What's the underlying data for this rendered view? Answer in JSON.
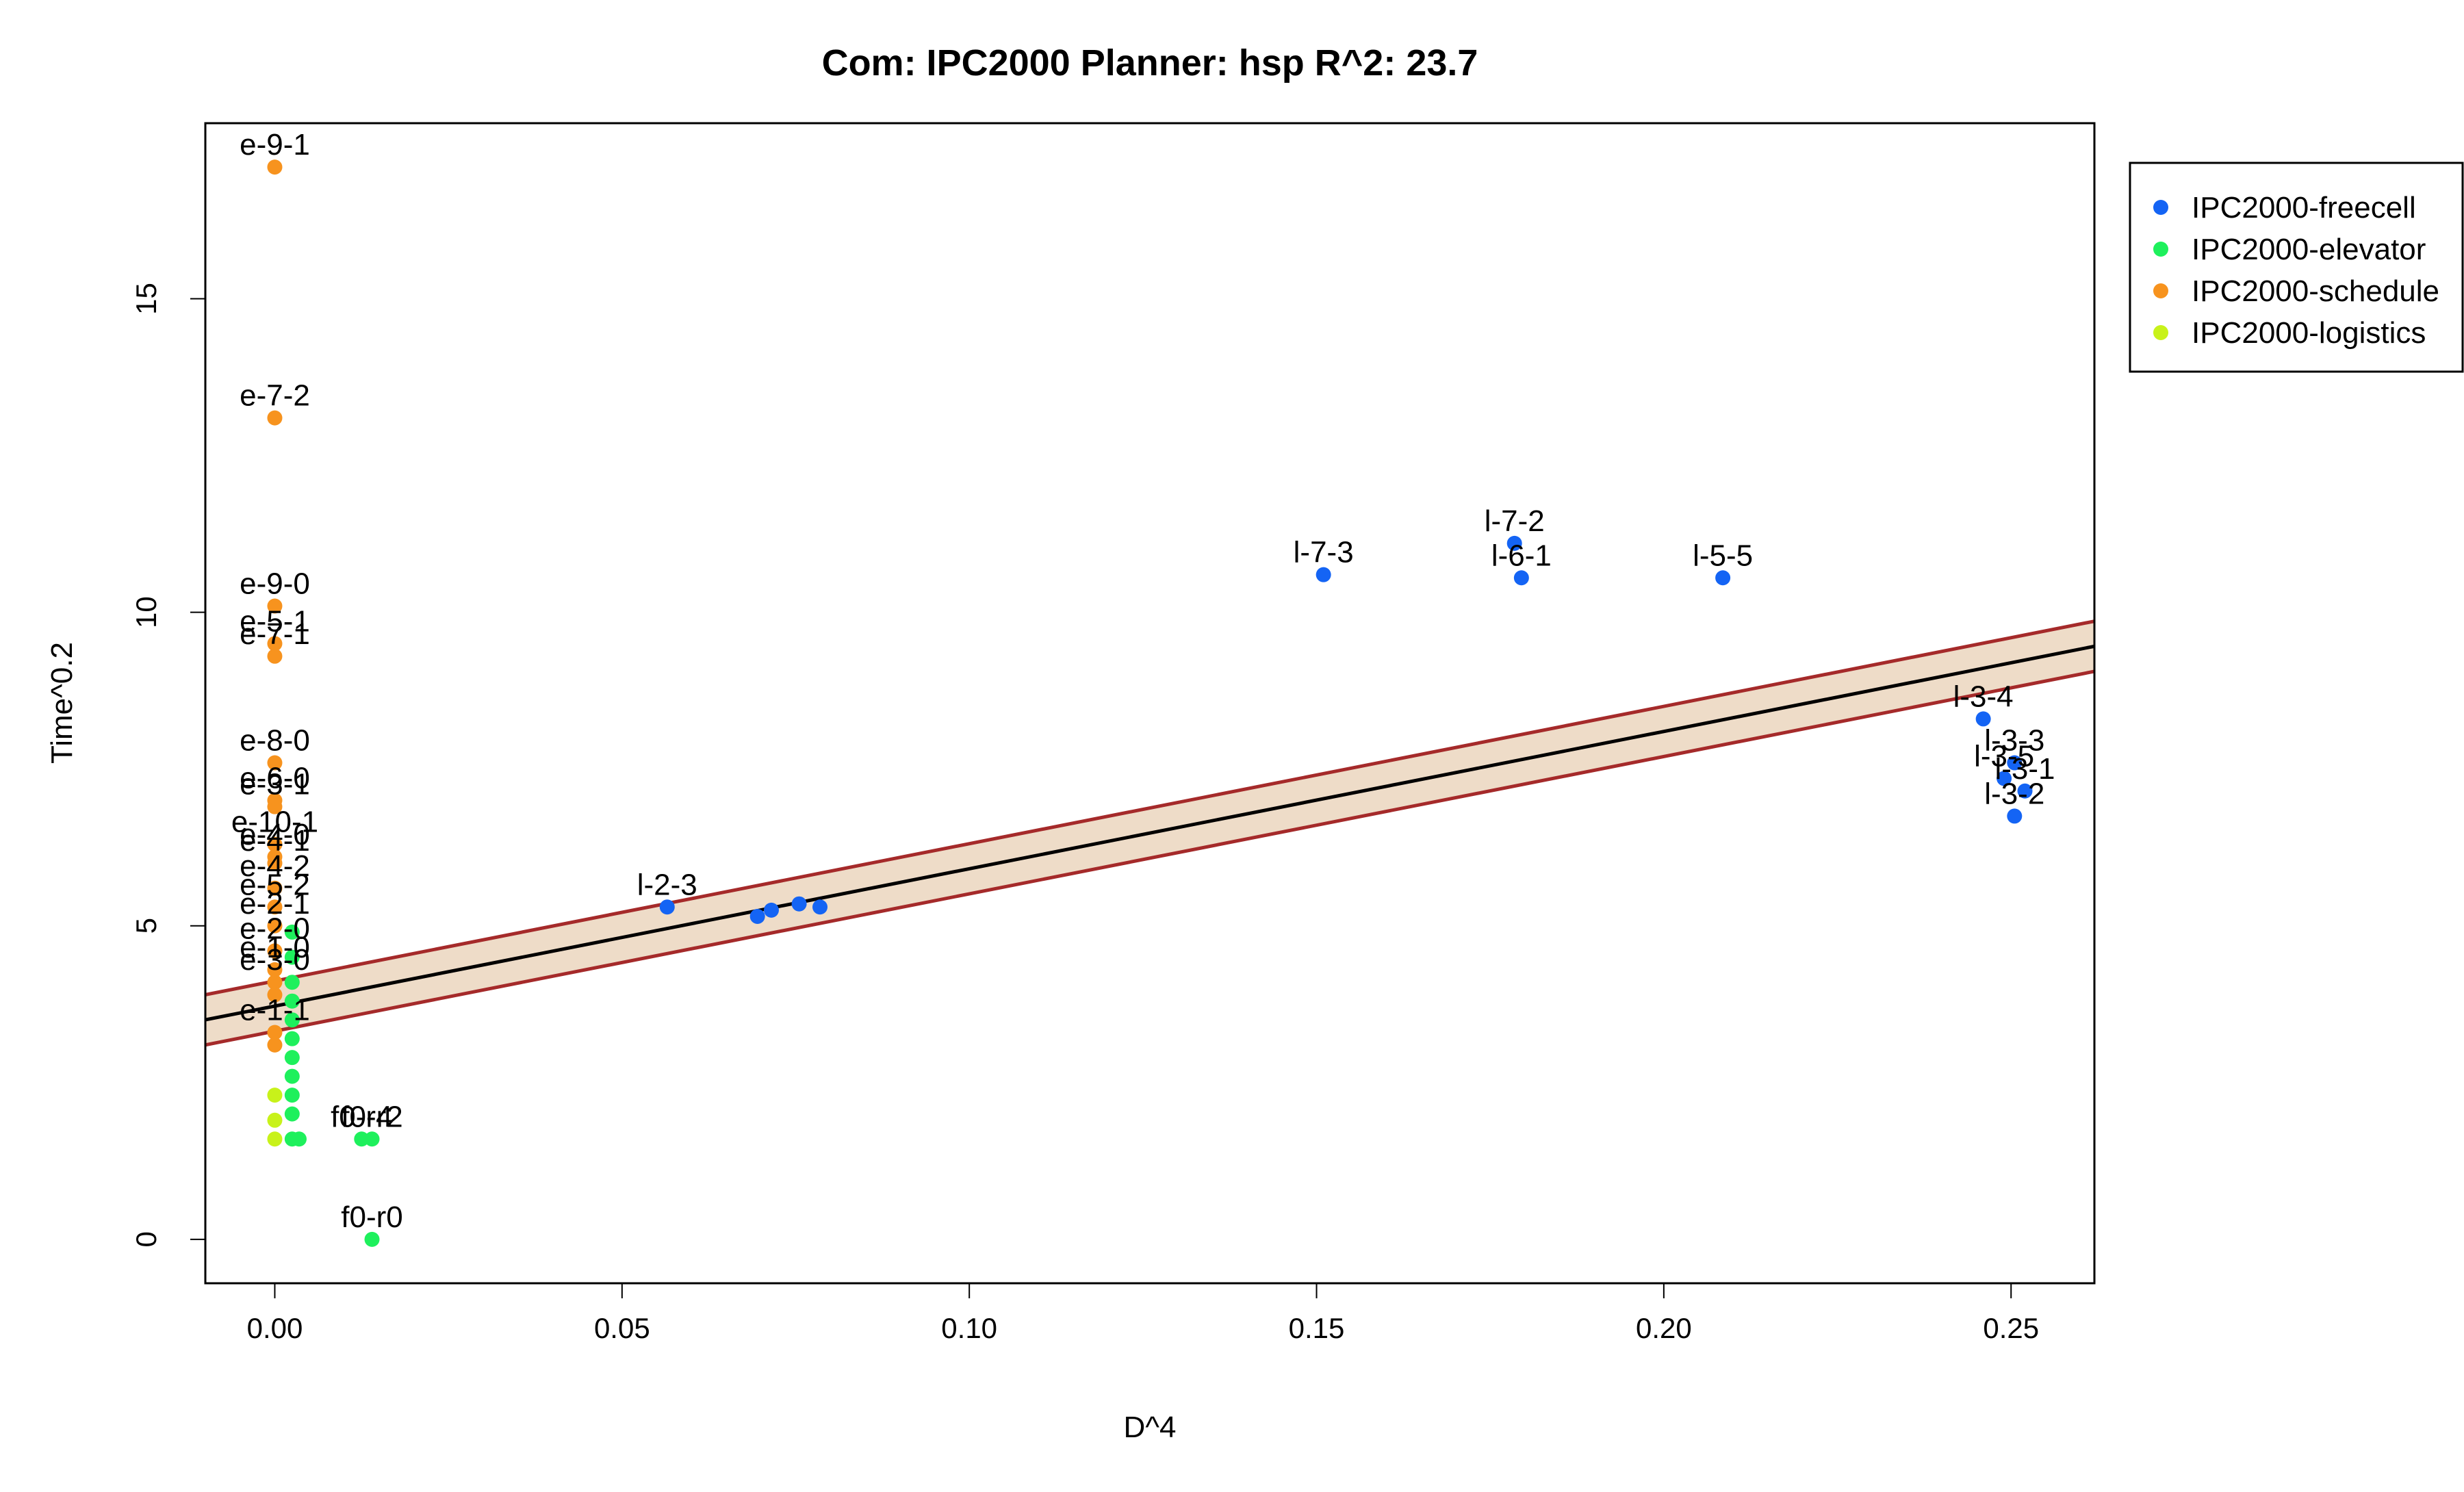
{
  "chart_data": {
    "type": "scatter",
    "title": "Com: IPC2000 Planner: hsp R^2: 23.7",
    "xlabel": "D^4",
    "ylabel": "Time^0.2",
    "xlim": [
      -0.01,
      0.262
    ],
    "ylim": [
      -0.7,
      17.8
    ],
    "x_ticks": [
      0.0,
      0.05,
      0.1,
      0.15,
      0.2,
      0.25
    ],
    "x_tick_labels": [
      "0.00",
      "0.05",
      "0.10",
      "0.15",
      "0.20",
      "0.25"
    ],
    "y_ticks": [
      0,
      5,
      10,
      15
    ],
    "y_tick_labels": [
      "0",
      "5",
      "10",
      "15"
    ],
    "grid": false,
    "legend_position": "top-right",
    "legend": [
      {
        "name": "IPC2000-freecell",
        "color": "#1464F4"
      },
      {
        "name": "IPC2000-elevator",
        "color": "#1EF05C"
      },
      {
        "name": "IPC2000-schedule",
        "color": "#F7931E"
      },
      {
        "name": "IPC2000-logistics",
        "color": "#C8F21A"
      }
    ],
    "fit": {
      "intercept": 3.72,
      "slope": 21.9,
      "band_lower_offset": -0.4,
      "band_upper_offset": 0.4,
      "line_color": "#000000",
      "band_line_color": "#A52A2A",
      "band_fill": "#EEDCC8"
    },
    "series": [
      {
        "name": "IPC2000-freecell",
        "color": "#1464F4",
        "points": [
          {
            "x": 0.0565,
            "y": 5.3,
            "label": "l-2-3"
          },
          {
            "x": 0.0695,
            "y": 5.15,
            "label": ""
          },
          {
            "x": 0.0715,
            "y": 5.25,
            "label": ""
          },
          {
            "x": 0.0755,
            "y": 5.35,
            "label": ""
          },
          {
            "x": 0.0785,
            "y": 5.3,
            "label": ""
          },
          {
            "x": 0.151,
            "y": 10.6,
            "label": "l-7-3"
          },
          {
            "x": 0.1785,
            "y": 11.1,
            "label": "l-7-2"
          },
          {
            "x": 0.1795,
            "y": 10.55,
            "label": "l-6-1"
          },
          {
            "x": 0.2085,
            "y": 10.55,
            "label": "l-5-5"
          },
          {
            "x": 0.246,
            "y": 8.3,
            "label": "l-3-4"
          },
          {
            "x": 0.2505,
            "y": 7.6,
            "label": "l-3-3"
          },
          {
            "x": 0.249,
            "y": 7.35,
            "label": "l-3-5"
          },
          {
            "x": 0.252,
            "y": 7.15,
            "label": "l-3-1"
          },
          {
            "x": 0.2505,
            "y": 6.75,
            "label": "l-3-2"
          }
        ]
      },
      {
        "name": "IPC2000-elevator",
        "color": "#1EF05C",
        "points": [
          {
            "x": 0.014,
            "y": 0.0,
            "label": "f0-r0"
          },
          {
            "x": 0.0125,
            "y": 1.6,
            "label": "f0-r4"
          },
          {
            "x": 0.014,
            "y": 1.6,
            "label": "f0-r2"
          },
          {
            "x": 0.0025,
            "y": 4.9,
            "label": ""
          },
          {
            "x": 0.0025,
            "y": 4.5,
            "label": ""
          },
          {
            "x": 0.0025,
            "y": 4.1,
            "label": ""
          },
          {
            "x": 0.0025,
            "y": 3.8,
            "label": ""
          },
          {
            "x": 0.0025,
            "y": 3.5,
            "label": ""
          },
          {
            "x": 0.0025,
            "y": 3.2,
            "label": ""
          },
          {
            "x": 0.0025,
            "y": 2.9,
            "label": ""
          },
          {
            "x": 0.0025,
            "y": 2.6,
            "label": ""
          },
          {
            "x": 0.0025,
            "y": 2.3,
            "label": ""
          },
          {
            "x": 0.0025,
            "y": 2.0,
            "label": ""
          },
          {
            "x": 0.0025,
            "y": 1.6,
            "label": ""
          },
          {
            "x": 0.0035,
            "y": 1.6,
            "label": ""
          }
        ]
      },
      {
        "name": "IPC2000-schedule",
        "color": "#F7931E",
        "points": [
          {
            "x": 0.0,
            "y": 17.1,
            "label": "e-9-1"
          },
          {
            "x": 0.0,
            "y": 13.1,
            "label": "e-7-2"
          },
          {
            "x": 0.0,
            "y": 10.1,
            "label": "e-9-0"
          },
          {
            "x": 0.0,
            "y": 9.5,
            "label": "e-5-1"
          },
          {
            "x": 0.0,
            "y": 9.3,
            "label": "e-7-1"
          },
          {
            "x": 0.0,
            "y": 7.6,
            "label": "e-8-0"
          },
          {
            "x": 0.0,
            "y": 7.0,
            "label": "e-6-0"
          },
          {
            "x": 0.0,
            "y": 6.9,
            "label": "e-3-1"
          },
          {
            "x": 0.0,
            "y": 6.3,
            "label": "e-10-1"
          },
          {
            "x": 0.0,
            "y": 6.1,
            "label": "e-4-0"
          },
          {
            "x": 0.0,
            "y": 6.0,
            "label": "e-4-1"
          },
          {
            "x": 0.0,
            "y": 5.6,
            "label": "e-4-2"
          },
          {
            "x": 0.0,
            "y": 5.3,
            "label": "e-5-2"
          },
          {
            "x": 0.0,
            "y": 5.0,
            "label": "e-2-1"
          },
          {
            "x": 0.0,
            "y": 4.6,
            "label": "e-2-0"
          },
          {
            "x": 0.0,
            "y": 4.3,
            "label": "e-1-0"
          },
          {
            "x": 0.0,
            "y": 4.1,
            "label": "e-3-0"
          },
          {
            "x": 0.0,
            "y": 3.9,
            "label": ""
          },
          {
            "x": 0.0,
            "y": 3.3,
            "label": "e-1-1"
          },
          {
            "x": 0.0,
            "y": 3.1,
            "label": ""
          }
        ]
      },
      {
        "name": "IPC2000-logistics",
        "color": "#C8F21A",
        "points": [
          {
            "x": 0.0,
            "y": 1.6,
            "label": ""
          },
          {
            "x": 0.0,
            "y": 1.9,
            "label": ""
          },
          {
            "x": 0.0,
            "y": 2.3,
            "label": ""
          }
        ]
      }
    ]
  }
}
